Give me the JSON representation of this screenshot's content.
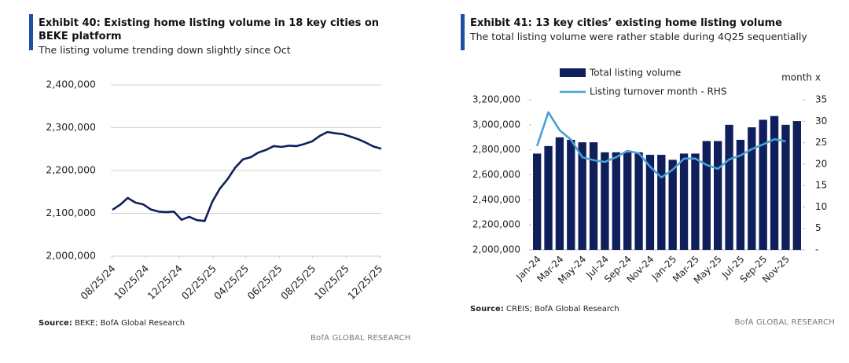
{
  "chart_data": [
    {
      "type": "line",
      "title": "Exhibit 40: Existing home listing volume in 18 key cities on BEKE platform",
      "subtitle": "The listing volume trending down slightly since Oct",
      "x": [
        "2024-08-25",
        "2024-09-08",
        "2024-09-22",
        "2024-10-06",
        "2024-10-20",
        "2024-11-03",
        "2024-11-17",
        "2024-12-01",
        "2024-12-15",
        "2024-12-29",
        "2025-01-12",
        "2025-01-26",
        "2025-02-09",
        "2025-02-23",
        "2025-03-09",
        "2025-03-23",
        "2025-04-06",
        "2025-04-20",
        "2025-05-04",
        "2025-05-18",
        "2025-06-01",
        "2025-06-15",
        "2025-06-29",
        "2025-07-13",
        "2025-07-27",
        "2025-08-10",
        "2025-08-24",
        "2025-09-07",
        "2025-09-21",
        "2025-10-05",
        "2025-10-19",
        "2025-11-02",
        "2025-11-16",
        "2025-11-30",
        "2025-12-14",
        "2025-12-28"
      ],
      "values": [
        2108000,
        2120000,
        2136000,
        2125000,
        2121000,
        2109000,
        2104000,
        2103000,
        2104000,
        2085000,
        2092000,
        2084000,
        2082000,
        2127000,
        2158000,
        2180000,
        2207000,
        2226000,
        2231000,
        2242000,
        2248000,
        2257000,
        2255000,
        2258000,
        2257000,
        2262000,
        2268000,
        2281000,
        2290000,
        2287000,
        2285000,
        2279000,
        2273000,
        2265000,
        2256000,
        2251000
      ],
      "color": "#0f1f5c",
      "xlim": [
        "2024-08-25",
        "2025-12-28"
      ],
      "xticks": [
        {
          "value": "2024-08-25",
          "label": "08/25/24"
        },
        {
          "value": "2024-10-25",
          "label": "10/25/24"
        },
        {
          "value": "2024-12-25",
          "label": "12/25/24"
        },
        {
          "value": "2025-02-25",
          "label": "02/25/25"
        },
        {
          "value": "2025-04-25",
          "label": "04/25/25"
        },
        {
          "value": "2025-06-25",
          "label": "06/25/25"
        },
        {
          "value": "2025-08-25",
          "label": "08/25/25"
        },
        {
          "value": "2025-10-25",
          "label": "10/25/25"
        },
        {
          "value": "2025-12-25",
          "label": "12/25/25"
        }
      ],
      "ylim": [
        2000000,
        2400000
      ],
      "yticks": [
        {
          "value": 2000000,
          "label": "2,000,000"
        },
        {
          "value": 2100000,
          "label": "2,100,000"
        },
        {
          "value": 2200000,
          "label": "2,200,000"
        },
        {
          "value": 2300000,
          "label": "2,300,000"
        },
        {
          "value": 2400000,
          "label": "2,400,000"
        }
      ],
      "grid": true
    },
    {
      "type": "bar",
      "title": "Exhibit 41: 13 key cities’ existing home listing volume",
      "subtitle": "The total listing volume were rather stable during 4Q25 sequentially",
      "categories": [
        "Jan-24",
        null,
        "Mar-24",
        null,
        "May-24",
        null,
        "Jul-24",
        null,
        "Sep-24",
        null,
        "Nov-24",
        null,
        "Jan-25",
        null,
        "Mar-25",
        null,
        "May-25",
        null,
        "Jul-25",
        null,
        "Sep-25",
        null,
        "Nov-25",
        null
      ],
      "series": [
        {
          "name": "Total listing volume",
          "type": "bar",
          "color": "#0f1f5c",
          "values": [
            2770000,
            2830000,
            2900000,
            2880000,
            2860000,
            2860000,
            2780000,
            2780000,
            2780000,
            2780000,
            2760000,
            2760000,
            2720000,
            2770000,
            2770000,
            2870000,
            2870000,
            3000000,
            2880000,
            2980000,
            3040000,
            3070000,
            3000000,
            3030000
          ]
        },
        {
          "name": "Listing turnover month - RHS",
          "type": "line",
          "axis": "y2",
          "color": "#4b9fd5",
          "values": [
            24.2,
            32.1,
            27.9,
            25.7,
            21.6,
            20.9,
            20.5,
            21.6,
            23.1,
            22.5,
            19.4,
            16.9,
            18.7,
            21.3,
            21.3,
            19.8,
            18.9,
            21.1,
            22.0,
            23.5,
            24.6,
            25.8,
            25.3,
            null
          ]
        }
      ],
      "ylim": [
        2000000,
        3200000
      ],
      "yticks": [
        {
          "value": 2000000,
          "label": "2,000,000"
        },
        {
          "value": 2200000,
          "label": "2,200,000"
        },
        {
          "value": 2400000,
          "label": "2,400,000"
        },
        {
          "value": 2600000,
          "label": "2,600,000"
        },
        {
          "value": 2800000,
          "label": "2,800,000"
        },
        {
          "value": 3000000,
          "label": "3,000,000"
        },
        {
          "value": 3200000,
          "label": "3,200,000"
        }
      ],
      "y2lim": [
        0,
        35
      ],
      "y2ticks": [
        {
          "value": 0,
          "label": "-"
        },
        5,
        10,
        15,
        20,
        25,
        30,
        35
      ],
      "y2label": "month x",
      "grid": false
    }
  ],
  "sources": [
    {
      "label": "Source:",
      "text": "BEKE; BofA Global Research"
    },
    {
      "label": "Source:",
      "text": "CREIS; BofA Global Research"
    }
  ],
  "footers": [
    "BofA GLOBAL RESEARCH",
    "BofA GLOBAL RESEARCH"
  ]
}
